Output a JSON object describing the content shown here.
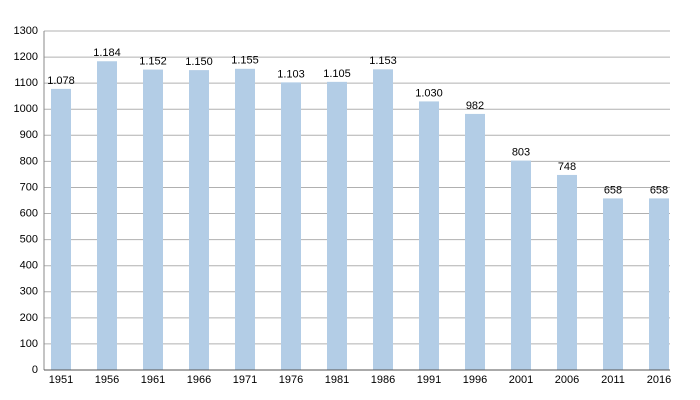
{
  "chart_data": {
    "type": "bar",
    "categories": [
      "1951",
      "1956",
      "1961",
      "1966",
      "1971",
      "1976",
      "1981",
      "1986",
      "1991",
      "1996",
      "2001",
      "2006",
      "2011",
      "2016"
    ],
    "values": [
      1078,
      1184,
      1152,
      1150,
      1155,
      1103,
      1105,
      1153,
      1030,
      982,
      803,
      748,
      658,
      658
    ],
    "value_labels": [
      "1.078",
      "1.184",
      "1.152",
      "1.150",
      "1.155",
      "1.103",
      "1.105",
      "1.153",
      "1.030",
      "982",
      "803",
      "748",
      "658",
      "658"
    ],
    "color": "#b3cde6",
    "ylim": [
      0,
      1300
    ],
    "yticks": [
      0,
      100,
      200,
      300,
      400,
      500,
      600,
      700,
      800,
      900,
      1000,
      1100,
      1200,
      1300
    ],
    "grid": true
  }
}
